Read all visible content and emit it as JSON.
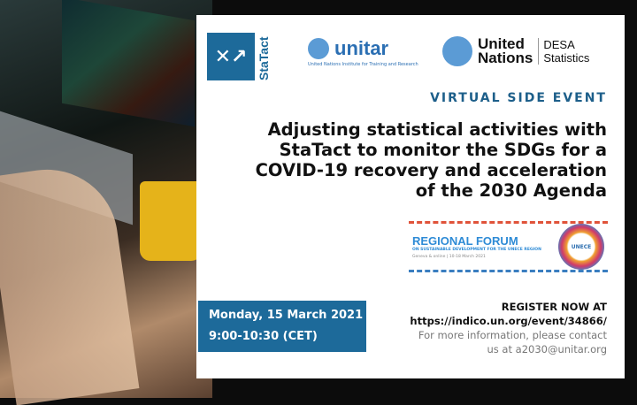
{
  "logos": {
    "statact": "StaTact",
    "unitar": "unitar",
    "unitar_sub": "United Nations Institute for Training and Research",
    "un_line1": "United",
    "un_line2": "Nations",
    "desa_line1": "DESA",
    "desa_line2": "Statistics",
    "unece": "UNECE"
  },
  "event_type": "VIRTUAL SIDE EVENT",
  "title": "Adjusting statistical activities with StaTact to monitor the SDGs for a COVID-19 recovery and acceleration of the 2030 Agenda",
  "forum": {
    "heading": "REGIONAL FORUM",
    "subheading": "ON SUSTAINABLE DEVELOPMENT FOR THE UNECE REGION",
    "dates": "Geneva & online | 10-18 March 2021"
  },
  "date": {
    "day": "Monday, 15 March 2021",
    "time": "9:00-10:30 (CET)"
  },
  "register": {
    "label": "REGISTER  NOW AT",
    "url": "https://indico.un.org/event/34866/",
    "info": "For more information, please contact",
    "contact_prefix": "us at ",
    "email": "a2030@unitar.org"
  },
  "colors": {
    "brand_blue": "#1d6a9a",
    "un_blue": "#5b9bd5"
  }
}
